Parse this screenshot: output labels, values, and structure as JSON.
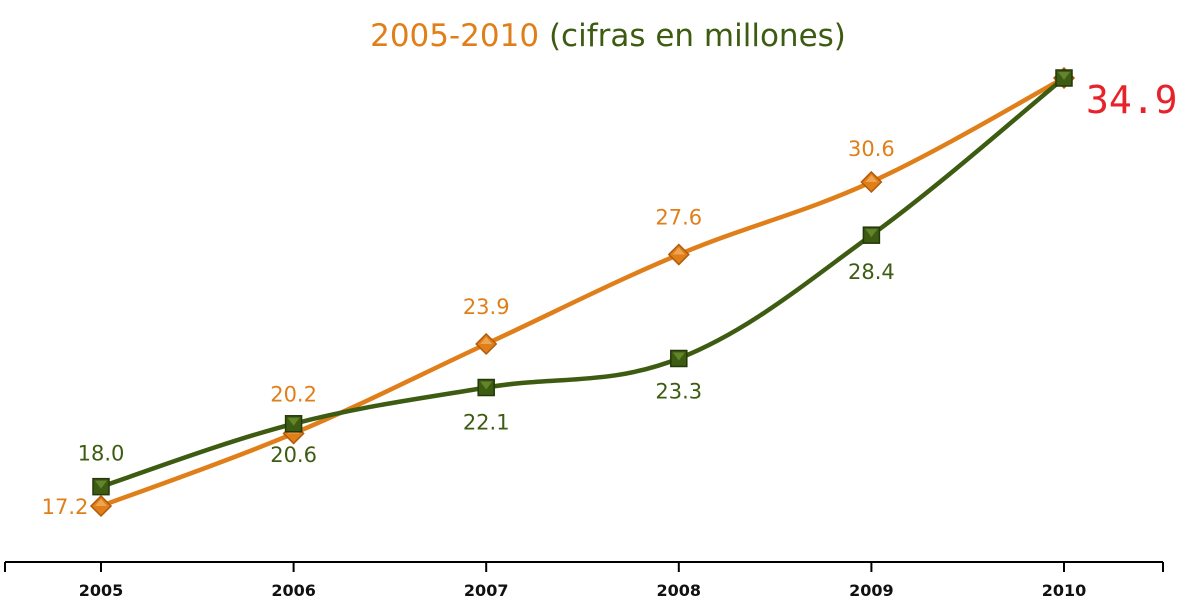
{
  "chart_data": {
    "type": "line",
    "title_part1": "2005-2010",
    "title_part2": "(cifras en millones)",
    "categories": [
      "2005",
      "2006",
      "2007",
      "2008",
      "2009",
      "2010"
    ],
    "ylim": [
      14,
      38
    ],
    "grid": false,
    "series": [
      {
        "values": [
          17.2,
          20.2,
          23.9,
          27.6,
          30.6,
          34.9
        ],
        "labels": [
          "17.2",
          "20.2",
          "23.9",
          "27.6",
          "30.6",
          ""
        ],
        "color": "#e07f1a",
        "marker": "diamond"
      },
      {
        "values": [
          18.0,
          20.6,
          22.1,
          23.3,
          28.4,
          34.9
        ],
        "labels": [
          "18.0",
          "20.6",
          "22.1",
          "23.3",
          "28.4",
          ""
        ],
        "color": "#3d5c12",
        "marker": "square"
      }
    ],
    "final_value_label": "34.9",
    "final_value_color": "#e8222a",
    "title_color_part1": "#e07f1a",
    "title_color_part2": "#3d5c12"
  }
}
